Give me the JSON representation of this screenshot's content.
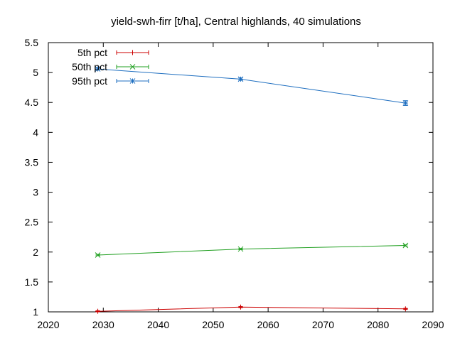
{
  "chart_data": {
    "type": "line",
    "title": "yield-swh-firr [t/ha], Central highlands, 40 simulations",
    "xlabel": "",
    "ylabel": "",
    "xlim": [
      2020,
      2090
    ],
    "ylim": [
      1,
      5.5
    ],
    "xticks": [
      2020,
      2030,
      2040,
      2050,
      2060,
      2070,
      2080,
      2090
    ],
    "yticks": [
      1,
      1.5,
      2,
      2.5,
      3,
      3.5,
      4,
      4.5,
      5,
      5.5
    ],
    "yticklabels": [
      "1",
      "1.5",
      "2",
      "2.5",
      "3",
      "3.5",
      "4",
      "4.5",
      "5",
      "5.5"
    ],
    "grid": false,
    "legend_position": "top-left",
    "x": [
      2029,
      2055,
      2085
    ],
    "series": [
      {
        "name": "5th pct",
        "color": "#cc0000",
        "marker": "plus",
        "values": [
          1.01,
          1.08,
          1.05
        ],
        "errors": [
          0.01,
          0.01,
          0.01
        ]
      },
      {
        "name": "50th pct",
        "color": "#22a022",
        "marker": "x",
        "values": [
          1.95,
          2.05,
          2.11
        ],
        "errors": [
          0.01,
          0.01,
          0.01
        ]
      },
      {
        "name": "95th pct",
        "color": "#1f6fc0",
        "marker": "asterisk",
        "values": [
          5.06,
          4.89,
          4.49
        ],
        "errors": [
          0.02,
          0.02,
          0.04
        ]
      }
    ]
  }
}
